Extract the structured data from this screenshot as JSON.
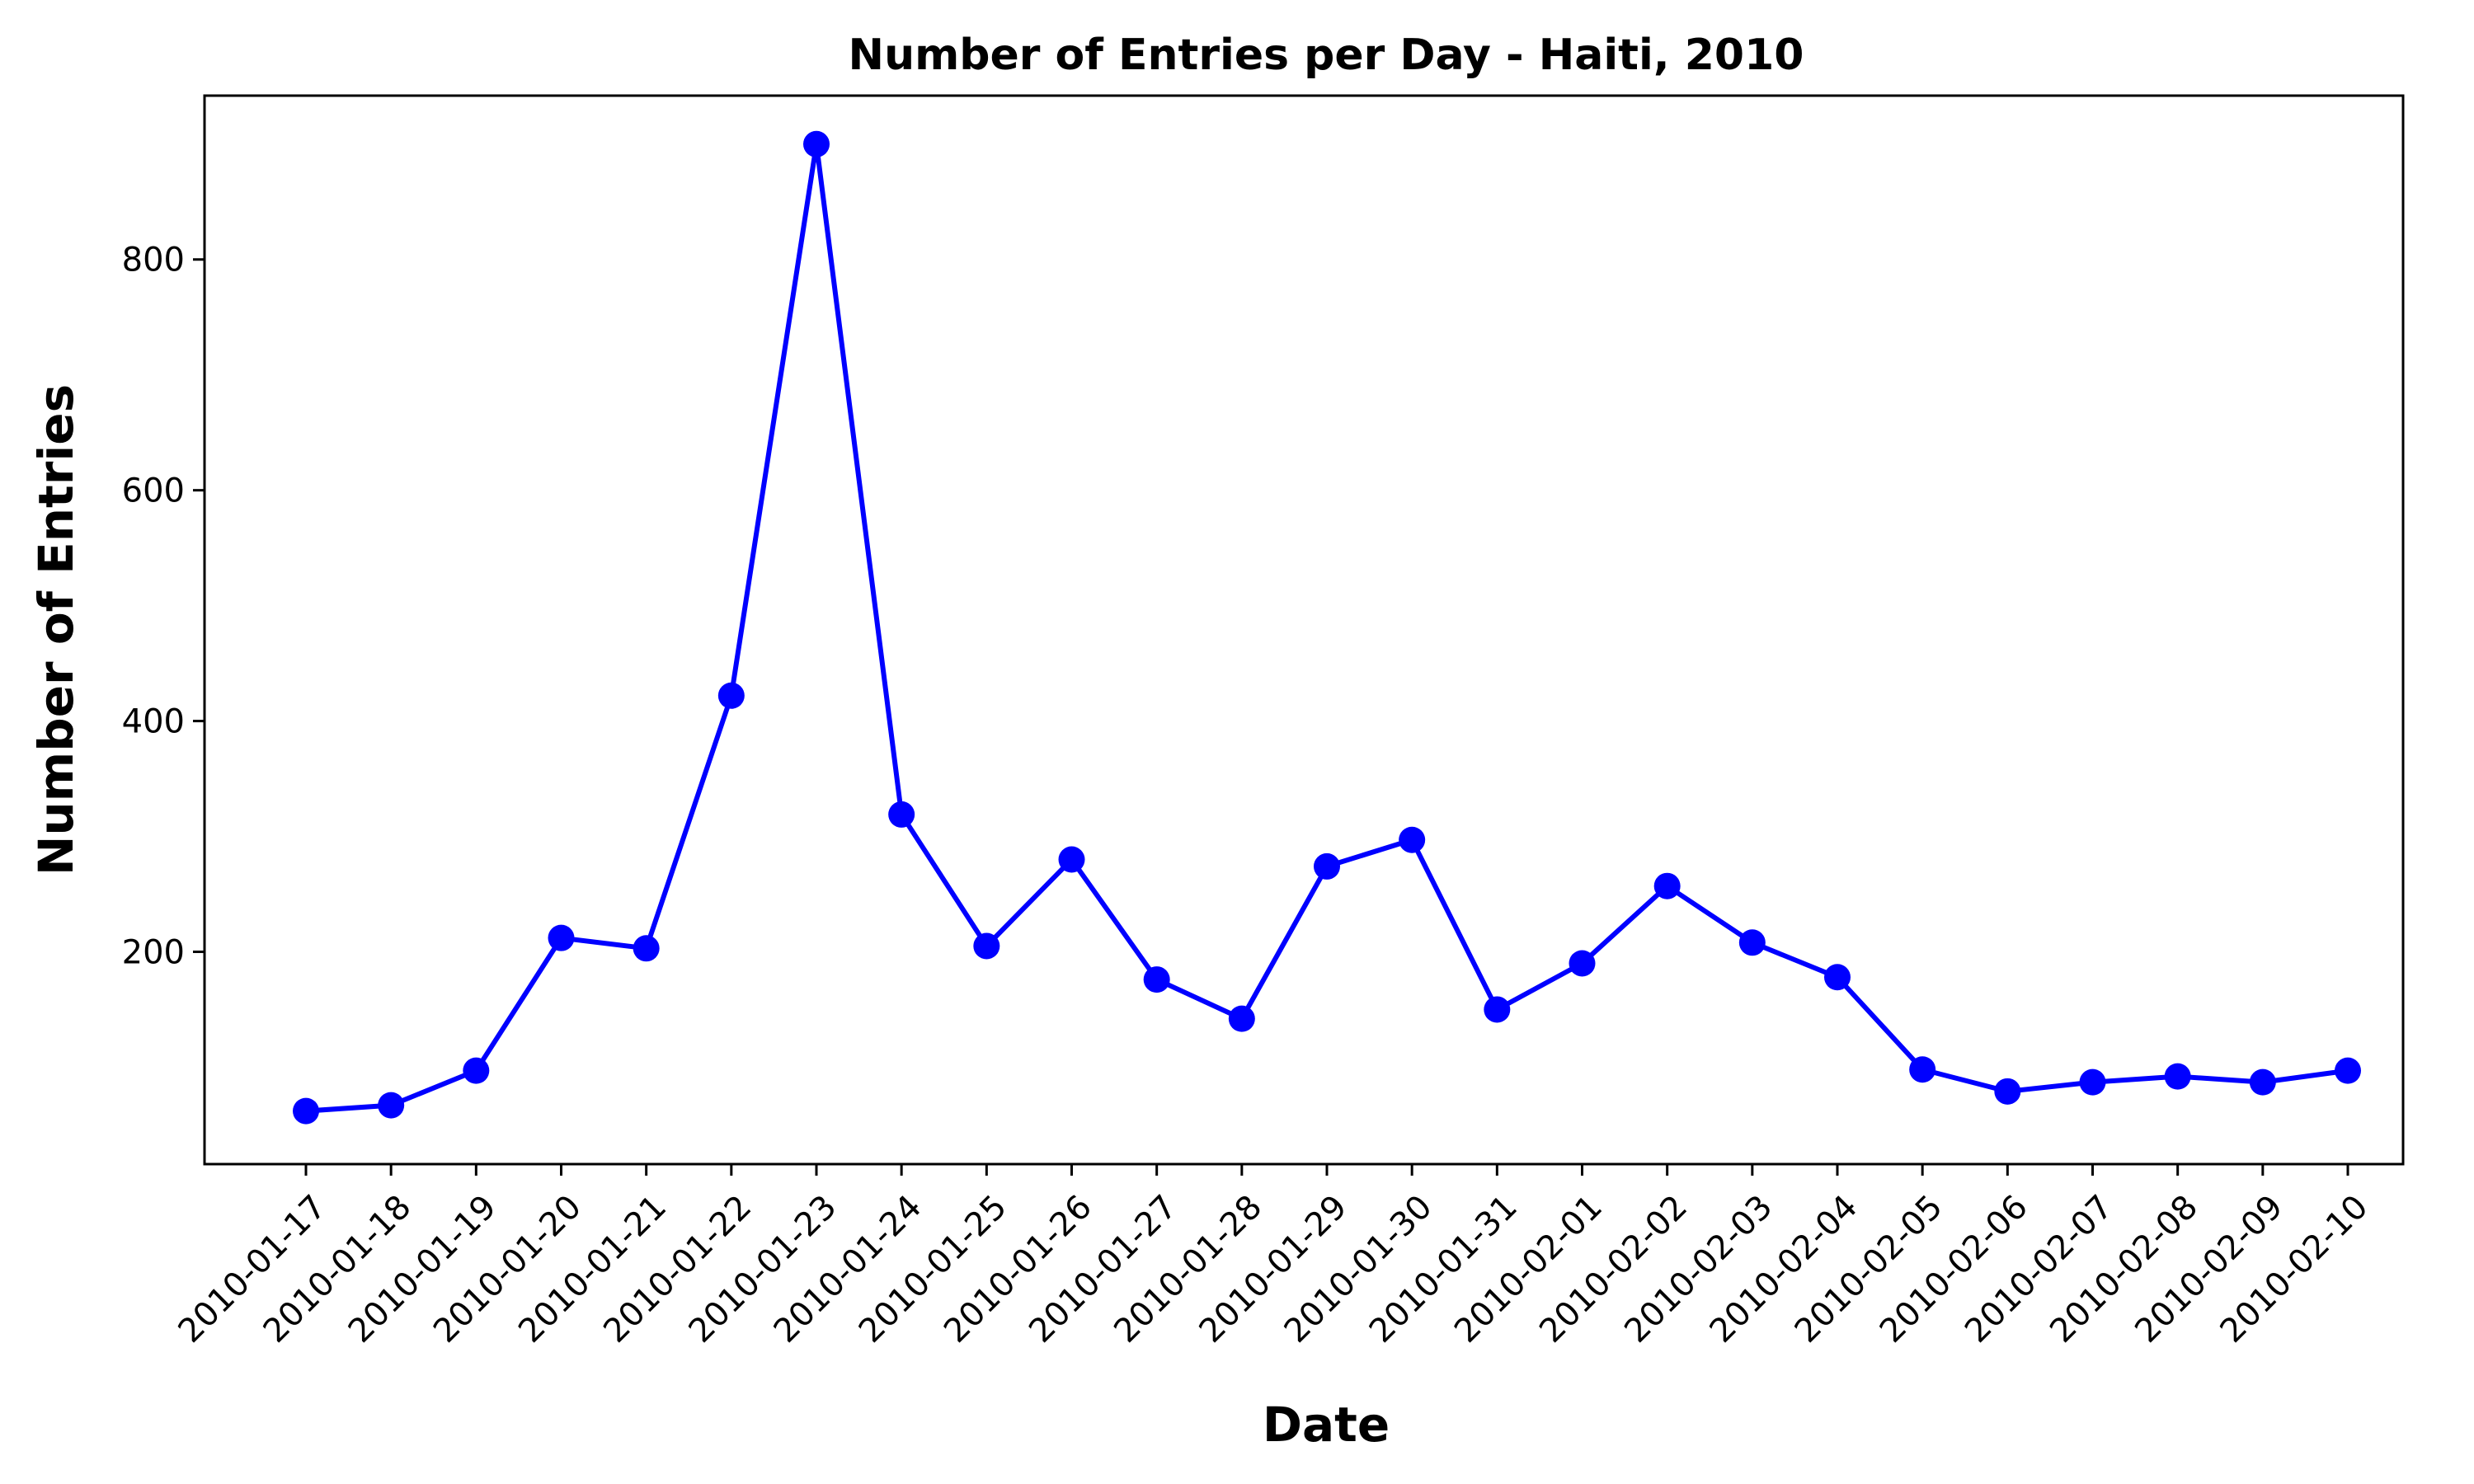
{
  "chart_data": {
    "type": "line",
    "title": "Number of Entries per Day - Haiti, 2010",
    "xlabel": "Date",
    "ylabel": "Number of Entries",
    "x": [
      "2010-01-17",
      "2010-01-18",
      "2010-01-19",
      "2010-01-20",
      "2010-01-21",
      "2010-01-22",
      "2010-01-23",
      "2010-01-24",
      "2010-01-25",
      "2010-01-26",
      "2010-01-27",
      "2010-01-28",
      "2010-01-29",
      "2010-01-30",
      "2010-01-31",
      "2010-02-01",
      "2010-02-02",
      "2010-02-03",
      "2010-02-04",
      "2010-02-05",
      "2010-02-06",
      "2010-02-07",
      "2010-02-08",
      "2010-02-09",
      "2010-02-10"
    ],
    "series": [
      {
        "color": "#0000ff",
        "marker": "circle",
        "values": [
          62,
          67,
          97,
          212,
          203,
          422,
          900,
          319,
          205,
          280,
          176,
          142,
          274,
          297,
          150,
          190,
          257,
          208,
          178,
          98,
          79,
          87,
          92,
          87,
          97
        ]
      }
    ],
    "ylim": [
      16,
      942
    ],
    "yticks": [
      200,
      400,
      600,
      800
    ],
    "grid": false,
    "legend": "none"
  }
}
